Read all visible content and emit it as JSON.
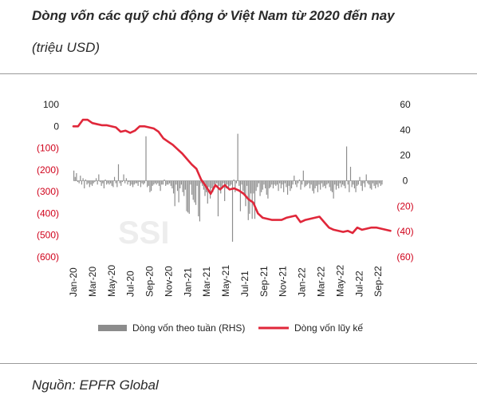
{
  "header": {
    "title_line1": "Dòng vốn các quỹ chủ động ở Việt Nam từ 2020 đến nay",
    "title_line2": "(triệu USD)"
  },
  "footer": {
    "source": "Nguồn: EPFR Global"
  },
  "watermark": "SSI",
  "colors": {
    "bar": "#8c8c8c",
    "line": "#e0273a",
    "negative_label": "#d0021b",
    "text": "#222222"
  },
  "chart_data": {
    "type": "bar+line",
    "title": "Dòng vốn các quỹ chủ động ở Việt Nam từ 2020 đến nay",
    "subtitle": "(triệu USD)",
    "x_tick_labels": [
      "Jan-20",
      "Mar-20",
      "May-20",
      "Jul-20",
      "Sep-20",
      "Nov-20",
      "Jan-21",
      "Mar-21",
      "May-21",
      "Jul-21",
      "Sep-21",
      "Nov-21",
      "Jan-22",
      "Mar-22",
      "May-22",
      "Jul-22",
      "Sep-22"
    ],
    "left_axis": {
      "ylim": [
        -600,
        100
      ],
      "ticks": [
        100,
        0,
        -100,
        -200,
        -300,
        -400,
        -500,
        -600
      ],
      "tick_labels": [
        "100",
        "0",
        "(100)",
        "(200)",
        "(300)",
        "(400)",
        "(500)",
        "(600)"
      ]
    },
    "right_axis": {
      "ylim": [
        -60,
        60
      ],
      "ticks": [
        60,
        40,
        20,
        0,
        -20,
        -40,
        -60
      ],
      "tick_labels": [
        "60",
        "40",
        "20",
        "0",
        "(20)",
        "(40)",
        "(60)"
      ]
    },
    "legend": {
      "placement": "bottom",
      "entries": [
        {
          "name": "Dòng vốn theo tuần (RHS)",
          "style": "bar"
        },
        {
          "name": "Dòng vốn lũy kế",
          "style": "line"
        }
      ]
    },
    "series": [
      {
        "name": "Dòng vốn lũy kế",
        "axis": "left",
        "kind": "line",
        "x": [
          0,
          0.5,
          1,
          1.5,
          2,
          2.5,
          3,
          3.5,
          4,
          4.5,
          5,
          5.5,
          6,
          6.5,
          7,
          7.5,
          8,
          8.5,
          9,
          9.5,
          10,
          10.5,
          11,
          11.5,
          12,
          12.5,
          13,
          13.5,
          14,
          14.5,
          15,
          15.5,
          16,
          16.5,
          17,
          17.5,
          18,
          18.5,
          19,
          19.5,
          20,
          20.5,
          21,
          21.5,
          22,
          22.5,
          23,
          23.5,
          24,
          24.5,
          25,
          25.5,
          26,
          26.5,
          27,
          27.5,
          28,
          28.5,
          29,
          29.5,
          30,
          30.5,
          31,
          31.5,
          32,
          32.5,
          33,
          33.5
        ],
        "values": [
          0,
          0,
          30,
          30,
          15,
          10,
          5,
          5,
          0,
          -5,
          -25,
          -20,
          -30,
          -20,
          0,
          0,
          -5,
          -10,
          -25,
          -55,
          -70,
          -85,
          -105,
          -125,
          -150,
          -175,
          -195,
          -245,
          -275,
          -310,
          -270,
          -290,
          -270,
          -290,
          -285,
          -295,
          -310,
          -335,
          -350,
          -400,
          -420,
          -425,
          -430,
          -430,
          -430,
          -420,
          -415,
          -410,
          -440,
          -430,
          -425,
          -420,
          -415,
          -440,
          -465,
          -475,
          -480,
          -485,
          -480,
          -490,
          -465,
          -475,
          -470,
          -465,
          -465,
          -470,
          -475,
          -480
        ]
      },
      {
        "name": "Dòng vốn theo tuần (RHS)",
        "axis": "right",
        "kind": "bar",
        "values": [
          8,
          3,
          6,
          -1,
          -2,
          4,
          -3,
          2,
          -6,
          1,
          -3,
          -2,
          -5,
          -3,
          -4,
          -2,
          -1,
          2,
          -3,
          5,
          -1,
          -4,
          -2,
          -6,
          1,
          -3,
          -2,
          -3,
          -2,
          -4,
          -5,
          3,
          -2,
          -5,
          13,
          -2,
          -4,
          -1,
          5,
          -2,
          2,
          -3,
          -1,
          -4,
          -3,
          -5,
          -3,
          -2,
          -2,
          -4,
          -1,
          -5,
          -2,
          -3,
          -2,
          35,
          -5,
          -4,
          -9,
          -8,
          -4,
          -3,
          -2,
          -3,
          -2,
          -4,
          -8,
          -3,
          -3,
          1,
          -4,
          -3,
          -3,
          -2,
          -4,
          -6,
          -10,
          -20,
          -3,
          -8,
          -17,
          -6,
          -3,
          -9,
          -12,
          -7,
          -24,
          -25,
          -26,
          -3,
          -11,
          -15,
          -17,
          -19,
          -4,
          -28,
          -32,
          -2,
          -4,
          -7,
          -12,
          -9,
          -18,
          -5,
          -14,
          -6,
          -9,
          -3,
          -5,
          -2,
          -28,
          -4,
          -10,
          -6,
          -2,
          -16,
          -6,
          -3,
          -7,
          -4,
          -3,
          -48,
          1,
          -9,
          -2,
          37,
          -4,
          -24,
          -3,
          -8,
          -10,
          -20,
          -4,
          -31,
          -26,
          -10,
          -30,
          -10,
          -30,
          -8,
          -5,
          -2,
          -12,
          -9,
          -7,
          -3,
          -6,
          -11,
          -14,
          -6,
          -5,
          -3,
          -6,
          -3,
          -4,
          -3,
          -8,
          -2,
          -6,
          -3,
          -9,
          -2,
          -5,
          -11,
          -4,
          -8,
          -6,
          -3,
          4,
          -3,
          -5,
          -2,
          1,
          -7,
          -3,
          8,
          -5,
          -4,
          -3,
          -2,
          -6,
          -3,
          -8,
          -10,
          -6,
          -4,
          -9,
          -3,
          -7,
          -2,
          -5,
          -4,
          -6,
          -3,
          -2,
          -5,
          -8,
          -9,
          -14,
          -3,
          -7,
          -4,
          -6,
          -2,
          -5,
          -3,
          -4,
          -6,
          27,
          -3,
          -9,
          11,
          -5,
          -3,
          -6,
          -9,
          -4,
          -3,
          3,
          -4,
          -8,
          -2,
          -5,
          5,
          -2,
          -3,
          -6,
          -7,
          -2,
          -4,
          -6,
          -3,
          -5,
          -2,
          -4,
          -3
        ]
      }
    ]
  }
}
